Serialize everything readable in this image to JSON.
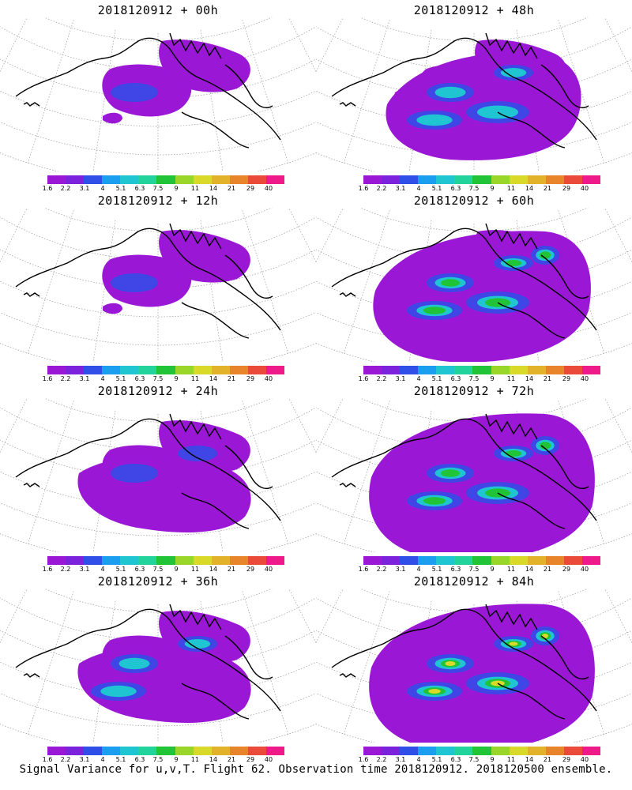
{
  "panels": [
    {
      "title": "2018120912 + 00h",
      "intensity": 0
    },
    {
      "title": "2018120912 + 48h",
      "intensity": 3
    },
    {
      "title": "2018120912 + 12h",
      "intensity": 0
    },
    {
      "title": "2018120912 + 60h",
      "intensity": 4
    },
    {
      "title": "2018120912 + 24h",
      "intensity": 1
    },
    {
      "title": "2018120912 + 72h",
      "intensity": 5
    },
    {
      "title": "2018120912 + 36h",
      "intensity": 2
    },
    {
      "title": "2018120912 + 84h",
      "intensity": 6
    }
  ],
  "colorbar": {
    "labels": [
      "1.6",
      "2.2",
      "3.1",
      "4",
      "5.1",
      "6.3",
      "7.5",
      "9",
      "11",
      "14",
      "21",
      "29",
      "40"
    ],
    "colors": [
      "#9b17d6",
      "#7a22dc",
      "#2f4fe8",
      "#1c9ef0",
      "#1fc6d2",
      "#22d39b",
      "#22c437",
      "#9ad62a",
      "#d9d92a",
      "#e2b22a",
      "#e8842a",
      "#ea4a3a",
      "#ee1a8a"
    ]
  },
  "footer": "Signal Variance for u,v,T. Flight 62. Observation time 2018120912. 2018120500 ensemble."
}
